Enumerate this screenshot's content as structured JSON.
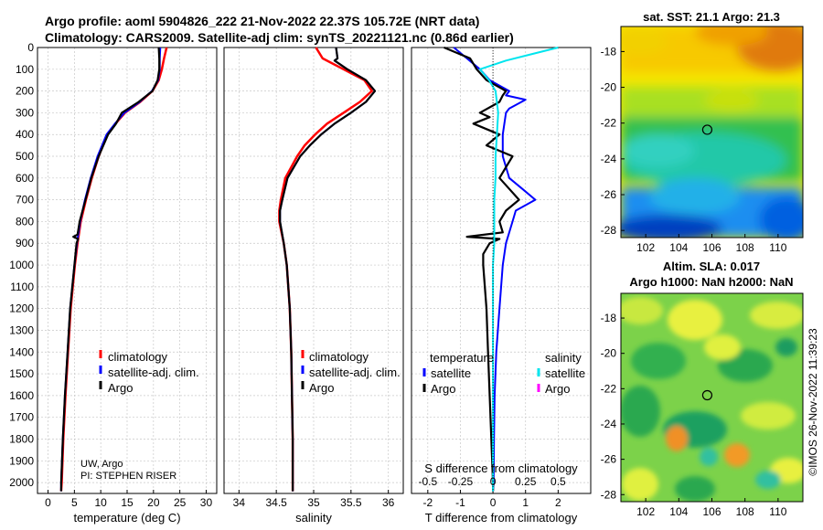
{
  "title_line1": "Argo profile: aoml 5904826_222 21-Nov-2022 22.37S 105.72E (NRT data)",
  "title_line2": "Climatology: CARS2009. Satellite-adj clim: synTS_20221121.nc (0.86d earlier)",
  "side_stamp": "©IMOS 26-Nov-2022 11:39:23",
  "credit_line1": "UW, Argo",
  "credit_line2": "PI: STEPHEN RISER",
  "colors": {
    "climatology": "#ff0000",
    "satellite_adj": "#0000ff",
    "argo": "#000000",
    "satellite_s": "#00e5ee",
    "argo_s": "#ff00ff"
  },
  "chart_data": [
    {
      "type": "line",
      "id": "temperature",
      "xlabel": "temperature (deg C)",
      "ylabel": "",
      "xlim": [
        -2,
        32
      ],
      "ylim": [
        2050,
        0
      ],
      "xticks": [
        "0",
        "5",
        "10",
        "15",
        "20",
        "25",
        "30"
      ],
      "xtick_values": [
        0,
        5,
        10,
        15,
        20,
        25,
        30
      ],
      "yticks": [
        "0",
        "100",
        "200",
        "300",
        "400",
        "500",
        "600",
        "700",
        "800",
        "900",
        "1000",
        "1100",
        "1200",
        "1300",
        "1400",
        "1500",
        "1600",
        "1700",
        "1800",
        "1900",
        "2000"
      ],
      "ytick_values": [
        0,
        100,
        200,
        300,
        400,
        500,
        600,
        700,
        800,
        900,
        1000,
        1100,
        1200,
        1300,
        1400,
        1500,
        1600,
        1700,
        1800,
        1900,
        2000
      ],
      "legend": [
        "climatology",
        "satellite-adj. clim.",
        "Argo"
      ],
      "series": [
        {
          "name": "climatology",
          "depth": [
            0,
            50,
            100,
            150,
            200,
            250,
            300,
            350,
            400,
            500,
            600,
            700,
            800,
            900,
            1000,
            1200,
            1400,
            1600,
            1800,
            2000,
            2040
          ],
          "values": [
            22.5,
            22.0,
            21.6,
            21.0,
            19.8,
            17.5,
            14.6,
            12.8,
            11.2,
            9.6,
            8.3,
            7.2,
            6.2,
            5.6,
            5.1,
            4.3,
            3.8,
            3.3,
            2.9,
            2.6,
            2.5
          ]
        },
        {
          "name": "satellite-adj. clim.",
          "depth": [
            0,
            50,
            100,
            150,
            200,
            250,
            300,
            350,
            400,
            500,
            600,
            700,
            800,
            900,
            1000,
            1200,
            1400,
            1600,
            1800,
            2000,
            2040
          ],
          "values": [
            21.3,
            21.2,
            21.2,
            20.9,
            19.7,
            17.4,
            14.5,
            12.7,
            11.1,
            9.4,
            8.1,
            7.0,
            6.1,
            5.5,
            5.0,
            4.2,
            3.7,
            3.2,
            2.8,
            2.5,
            2.5
          ]
        },
        {
          "name": "Argo",
          "depth": [
            0,
            50,
            100,
            150,
            200,
            250,
            300,
            350,
            400,
            500,
            600,
            700,
            800,
            860,
            870,
            880,
            900,
            1000,
            1200,
            1400,
            1600,
            1800,
            2000,
            2040
          ],
          "values": [
            21.0,
            21.1,
            21.1,
            20.8,
            19.8,
            17.2,
            14.0,
            12.9,
            11.4,
            9.6,
            8.2,
            7.1,
            6.0,
            5.6,
            4.8,
            5.7,
            5.4,
            5.0,
            4.2,
            3.7,
            3.2,
            2.8,
            2.5,
            2.5
          ]
        }
      ]
    },
    {
      "type": "line",
      "id": "salinity",
      "xlabel": "salinity",
      "xlim": [
        33.8,
        36.2
      ],
      "ylim": [
        2050,
        0
      ],
      "xticks": [
        "34",
        "34.5",
        "35",
        "35.5",
        "36"
      ],
      "xtick_values": [
        34,
        34.5,
        35,
        35.5,
        36
      ],
      "legend": [
        "climatology",
        "satellite-adj. clim.",
        "Argo"
      ],
      "series": [
        {
          "name": "climatology",
          "depth": [
            0,
            50,
            100,
            150,
            200,
            250,
            300,
            350,
            400,
            450,
            500,
            600,
            700,
            750,
            800,
            900,
            1000,
            1200,
            1400,
            1600,
            1800,
            2000,
            2040
          ],
          "values": [
            35.03,
            35.12,
            35.4,
            35.68,
            35.78,
            35.62,
            35.4,
            35.18,
            35.02,
            34.88,
            34.78,
            34.62,
            34.56,
            34.54,
            34.54,
            34.6,
            34.64,
            34.68,
            34.7,
            34.71,
            34.72,
            34.72,
            34.72
          ]
        },
        {
          "name": "satellite-adj. clim.",
          "depth": [
            0,
            50,
            60,
            100,
            150,
            200,
            250,
            300,
            350,
            400,
            450,
            500,
            600,
            700,
            750,
            800,
            900,
            1000,
            1200,
            1400,
            1600,
            1800,
            2000,
            2040
          ],
          "values": [
            35.3,
            35.32,
            35.28,
            35.45,
            35.7,
            35.82,
            35.7,
            35.5,
            35.28,
            35.1,
            34.95,
            34.82,
            34.65,
            34.58,
            34.55,
            34.55,
            34.6,
            34.64,
            34.68,
            34.7,
            34.71,
            34.72,
            34.72,
            34.72
          ]
        },
        {
          "name": "Argo",
          "depth": [
            0,
            50,
            60,
            100,
            150,
            200,
            250,
            300,
            350,
            400,
            450,
            500,
            600,
            700,
            750,
            800,
            900,
            1000,
            1200,
            1400,
            1600,
            1800,
            2000,
            2040
          ],
          "values": [
            35.3,
            35.32,
            35.28,
            35.45,
            35.7,
            35.82,
            35.7,
            35.5,
            35.28,
            35.1,
            34.95,
            34.82,
            34.65,
            34.58,
            34.55,
            34.55,
            34.6,
            34.64,
            34.68,
            34.7,
            34.71,
            34.72,
            34.72,
            34.72
          ]
        }
      ]
    },
    {
      "type": "line",
      "id": "difference",
      "xlabel": "T difference from climatology",
      "xlabel_top": "S difference from climatology",
      "xlim": [
        -2.5,
        3.0
      ],
      "ylim": [
        2050,
        0
      ],
      "xticks": [
        "-2",
        "-1",
        "0",
        "1",
        "2"
      ],
      "xtick_values": [
        -2,
        -1,
        0,
        1,
        2
      ],
      "s_ticks": [
        "-0.5",
        "-0.25",
        "0",
        "0.25",
        "0.5"
      ],
      "s_tick_values": [
        -0.5,
        -0.25,
        0,
        0.25,
        0.5
      ],
      "legend_temperature": [
        "temperature",
        "satellite",
        "Argo"
      ],
      "legend_salinity": [
        "salinity",
        "satellite",
        "Argo"
      ],
      "series": [
        {
          "name": "T satellite",
          "depth": [
            0,
            50,
            100,
            150,
            200,
            220,
            240,
            280,
            300,
            400,
            500,
            600,
            650,
            700,
            750,
            800,
            900,
            1000,
            1200,
            1400,
            1600,
            1800,
            2000,
            2040
          ],
          "values": [
            -1.2,
            -0.8,
            -0.4,
            -0.1,
            0.5,
            0.4,
            1.0,
            0.5,
            0.4,
            0.3,
            0.3,
            0.5,
            0.9,
            1.3,
            0.7,
            0.6,
            0.4,
            0.3,
            0.2,
            0.1,
            0.05,
            0.03,
            0.02,
            0.0
          ]
        },
        {
          "name": "T Argo",
          "depth": [
            0,
            50,
            100,
            150,
            200,
            220,
            250,
            300,
            320,
            350,
            400,
            450,
            500,
            550,
            600,
            650,
            700,
            750,
            800,
            850,
            870,
            880,
            900,
            950,
            1000,
            1200,
            1400,
            1600,
            1800,
            2000,
            2040
          ],
          "values": [
            -1.5,
            -0.7,
            -0.5,
            -0.2,
            0.4,
            0.3,
            0.2,
            -0.4,
            -0.1,
            -0.6,
            0.2,
            -0.2,
            0.6,
            0.4,
            0.2,
            0.5,
            0.8,
            0.4,
            0.2,
            0.3,
            -0.8,
            0.2,
            -0.1,
            -0.3,
            -0.3,
            -0.2,
            -0.15,
            -0.1,
            -0.05,
            0.0,
            0.0
          ]
        },
        {
          "name": "S satellite",
          "depth": [
            0,
            30,
            60,
            100,
            150,
            200,
            300,
            400,
            500,
            600,
            700,
            800,
            900,
            1000,
            1200,
            1400,
            1600,
            1800,
            2000,
            2040
          ],
          "values": [
            0.5,
            0.3,
            0.1,
            -0.1,
            -0.03,
            0.02,
            0.04,
            0.03,
            0.02,
            0.02,
            0.01,
            0.01,
            0.01,
            0.0,
            0.0,
            0.0,
            0.0,
            0.0,
            0.0,
            0.0
          ]
        }
      ]
    },
    {
      "type": "heatmap",
      "id": "sst_map",
      "title": "sat. SST: 21.1 Argo: 21.3",
      "xticks": [
        "102",
        "104",
        "106",
        "108",
        "110"
      ],
      "xtick_values": [
        102,
        104,
        106,
        108,
        110
      ],
      "yticks": [
        "-18",
        "-20",
        "-22",
        "-24",
        "-26",
        "-28"
      ],
      "ytick_values": [
        -18,
        -20,
        -22,
        -24,
        -26,
        -28
      ],
      "xlim": [
        100.5,
        111.5
      ],
      "ylim": [
        -28.4,
        -16.6
      ],
      "marker": {
        "lon": 105.72,
        "lat": -22.37
      }
    },
    {
      "type": "heatmap",
      "id": "sla_map",
      "title_line1": "Altim. SLA: 0.017",
      "title_line2": "Argo h1000: NaN h2000: NaN",
      "xticks": [
        "102",
        "104",
        "106",
        "108",
        "110"
      ],
      "xtick_values": [
        102,
        104,
        106,
        108,
        110
      ],
      "yticks": [
        "-18",
        "-20",
        "-22",
        "-24",
        "-26",
        "-28"
      ],
      "ytick_values": [
        -18,
        -20,
        -22,
        -24,
        -26,
        -28
      ],
      "xlim": [
        100.5,
        111.5
      ],
      "ylim": [
        -28.4,
        -16.6
      ],
      "marker": {
        "lon": 105.72,
        "lat": -22.37
      }
    }
  ]
}
